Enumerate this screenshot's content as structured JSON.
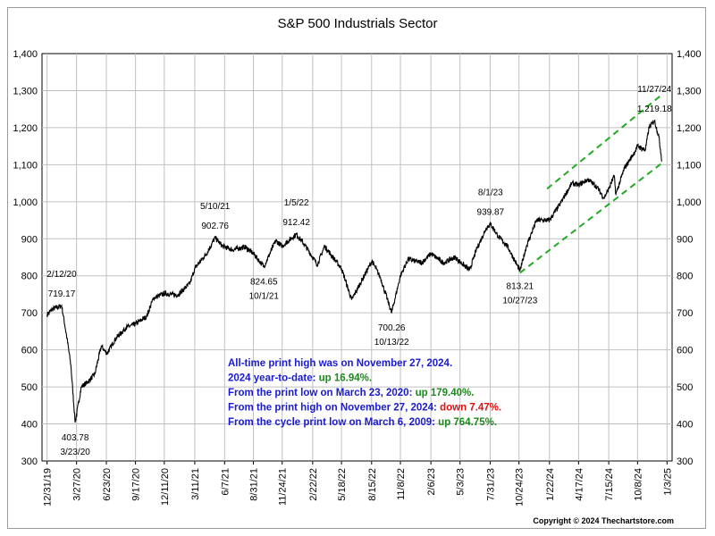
{
  "title": "S&P 500 Industrials Sector",
  "copyright": "Copyright © 2024 Thechartstore.com",
  "colors": {
    "line": "#000000",
    "trend": "#22aa22",
    "grid": "#c0c0c0",
    "blue": "#1a1ad0",
    "green": "#1a8a1a",
    "red": "#e01010"
  },
  "chart_data": {
    "type": "line",
    "series": [
      {
        "name": "",
        "points": [
          [
            "2019-12-31",
            695
          ],
          [
            "2020-01-15",
            710
          ],
          [
            "2020-02-12",
            719.17
          ],
          [
            "2020-02-28",
            630
          ],
          [
            "2020-03-10",
            560
          ],
          [
            "2020-03-23",
            403.78
          ],
          [
            "2020-04-10",
            500
          ],
          [
            "2020-05-01",
            515
          ],
          [
            "2020-05-20",
            535
          ],
          [
            "2020-06-08",
            610
          ],
          [
            "2020-06-25",
            590
          ],
          [
            "2020-07-20",
            630
          ],
          [
            "2020-08-20",
            660
          ],
          [
            "2020-09-17",
            670
          ],
          [
            "2020-10-20",
            690
          ],
          [
            "2020-11-09",
            740
          ],
          [
            "2020-12-11",
            752
          ],
          [
            "2021-01-20",
            748
          ],
          [
            "2021-02-25",
            780
          ],
          [
            "2021-03-11",
            820
          ],
          [
            "2021-04-15",
            860
          ],
          [
            "2021-05-10",
            902.76
          ],
          [
            "2021-06-01",
            880
          ],
          [
            "2021-07-01",
            870
          ],
          [
            "2021-08-05",
            878
          ],
          [
            "2021-08-31",
            860
          ],
          [
            "2021-10-01",
            824.65
          ],
          [
            "2021-11-05",
            895
          ],
          [
            "2021-11-24",
            880
          ],
          [
            "2022-01-05",
            912.42
          ],
          [
            "2022-02-01",
            880
          ],
          [
            "2022-03-08",
            830
          ],
          [
            "2022-03-29",
            880
          ],
          [
            "2022-05-18",
            820
          ],
          [
            "2022-06-17",
            735
          ],
          [
            "2022-08-16",
            840
          ],
          [
            "2022-09-10",
            795
          ],
          [
            "2022-10-13",
            700.26
          ],
          [
            "2022-11-08",
            800
          ],
          [
            "2022-12-01",
            845
          ],
          [
            "2023-01-10",
            835
          ],
          [
            "2023-02-06",
            860
          ],
          [
            "2023-03-15",
            835
          ],
          [
            "2023-04-18",
            850
          ],
          [
            "2023-05-31",
            815
          ],
          [
            "2023-06-20",
            870
          ],
          [
            "2023-07-20",
            930
          ],
          [
            "2023-08-01",
            939.87
          ],
          [
            "2023-08-25",
            905
          ],
          [
            "2023-09-20",
            880
          ],
          [
            "2023-10-27",
            813.21
          ],
          [
            "2023-11-15",
            880
          ],
          [
            "2023-12-15",
            950
          ],
          [
            "2024-01-22",
            950
          ],
          [
            "2024-02-20",
            990
          ],
          [
            "2024-03-28",
            1050
          ],
          [
            "2024-04-17",
            1045
          ],
          [
            "2024-05-15",
            1060
          ],
          [
            "2024-06-10",
            1040
          ],
          [
            "2024-07-01",
            1010
          ],
          [
            "2024-07-15",
            1035
          ],
          [
            "2024-07-31",
            1070
          ],
          [
            "2024-08-05",
            1020
          ],
          [
            "2024-08-30",
            1090
          ],
          [
            "2024-09-30",
            1135
          ],
          [
            "2024-10-08",
            1150
          ],
          [
            "2024-10-31",
            1140
          ],
          [
            "2024-11-11",
            1200
          ],
          [
            "2024-11-27",
            1219.18
          ],
          [
            "2024-12-10",
            1175
          ],
          [
            "2024-12-19",
            1110
          ]
        ]
      }
    ],
    "trend_lines": [
      {
        "start": [
          "2024-01-15",
          1035
        ],
        "end": [
          "2024-12-20",
          1290
        ]
      },
      {
        "start": [
          "2023-10-27",
          808
        ],
        "end": [
          "2024-12-20",
          1105
        ]
      }
    ],
    "ylim": [
      300,
      1400
    ],
    "yticks": [
      "300",
      "400",
      "500",
      "600",
      "700",
      "800",
      "900",
      "1,000",
      "1,100",
      "1,200",
      "1,300",
      "1,400"
    ],
    "xticks": [
      "12/31/19",
      "3/27/20",
      "6/23/20",
      "9/17/20",
      "12/11/20",
      "3/11/21",
      "6/7/21",
      "8/31/21",
      "11/24/21",
      "2/22/22",
      "5/18/22",
      "8/15/22",
      "11/8/22",
      "2/6/23",
      "5/3/23",
      "7/31/23",
      "10/24/23",
      "1/22/24",
      "4/17/24",
      "7/15/24",
      "10/8/24",
      "1/3/25"
    ],
    "xlim": [
      "2019-12-16",
      "2025-01-18"
    ],
    "grid": true,
    "annotations": [
      {
        "date": "2020-02-12",
        "y": 719.17,
        "lines": [
          "2/12/20",
          "719.17"
        ],
        "pos": "above"
      },
      {
        "date": "2020-03-23",
        "y": 403.78,
        "lines": [
          "403.78",
          "3/23/20"
        ],
        "pos": "below"
      },
      {
        "date": "2021-05-10",
        "y": 902.76,
        "lines": [
          "5/10/21",
          "902.76"
        ],
        "pos": "above"
      },
      {
        "date": "2021-10-01",
        "y": 824.65,
        "lines": [
          "824.65",
          "10/1/21"
        ],
        "pos": "below"
      },
      {
        "date": "2022-01-05",
        "y": 912.42,
        "lines": [
          "1/5/22",
          "912.42"
        ],
        "pos": "above"
      },
      {
        "date": "2022-10-13",
        "y": 700.26,
        "lines": [
          "700.26",
          "10/13/22"
        ],
        "pos": "below"
      },
      {
        "date": "2023-08-01",
        "y": 939.87,
        "lines": [
          "8/1/23",
          "939.87"
        ],
        "pos": "above"
      },
      {
        "date": "2023-10-27",
        "y": 813.21,
        "lines": [
          "813.21",
          "10/27/23"
        ],
        "pos": "below"
      },
      {
        "date": "2024-11-27",
        "y": 1219.18,
        "lines": [
          "11/27/24",
          "1,219.18"
        ],
        "pos": "above"
      }
    ],
    "notes": [
      [
        {
          "text": "All-time print high was on November 27, 2024.",
          "color": "blue"
        }
      ],
      [
        {
          "text": "2024 year-to-date:  ",
          "color": "blue"
        },
        {
          "text": "up 16.94%.",
          "color": "green"
        }
      ],
      [
        {
          "text": "From the print low on March 23, 2020:  ",
          "color": "blue"
        },
        {
          "text": "up 179.40%.",
          "color": "green"
        }
      ],
      [
        {
          "text": "From the print high on November 27, 2024:  ",
          "color": "blue"
        },
        {
          "text": "down 7.47%.",
          "color": "red"
        }
      ],
      [
        {
          "text": "From the cycle print low on March 6, 2009:  ",
          "color": "blue"
        },
        {
          "text": "up 764.75%.",
          "color": "green"
        }
      ]
    ]
  }
}
